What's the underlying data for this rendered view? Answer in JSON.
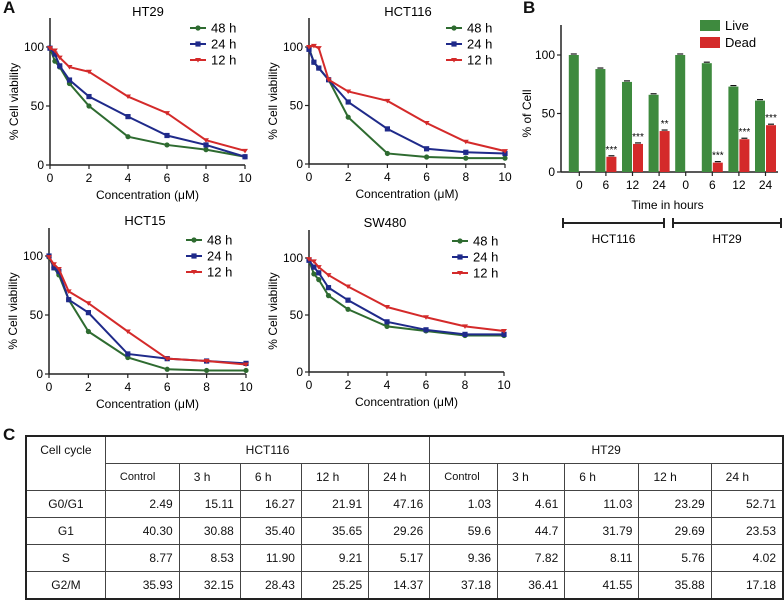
{
  "panels": {
    "a": "A",
    "b": "B",
    "c": "C"
  },
  "chart_data": [
    {
      "type": "line",
      "title": "HT29",
      "xlabel": "Concentration (μM)",
      "ylabel": "% Cell viability",
      "xlim": [
        0,
        10
      ],
      "ylim": [
        0,
        120
      ],
      "xticks": [
        0,
        2,
        4,
        6,
        8,
        10
      ],
      "yticks": [
        0,
        50,
        100
      ],
      "legend": "top-right",
      "x": [
        0,
        0.25,
        0.5,
        1,
        2,
        4,
        6,
        8,
        10
      ],
      "series": [
        {
          "name": "48 h",
          "color": "#2e6b30",
          "marker": "circle",
          "values": [
            99,
            88,
            83,
            69,
            50,
            24,
            17,
            13,
            7
          ]
        },
        {
          "name": "24 h",
          "color": "#1f2a8a",
          "marker": "square",
          "values": [
            99,
            94,
            84,
            72,
            58,
            41,
            25,
            17,
            7
          ]
        },
        {
          "name": "12 h",
          "color": "#d42a2a",
          "marker": "triangle",
          "values": [
            99,
            97,
            91,
            83,
            79,
            58,
            44,
            21,
            12
          ]
        }
      ]
    },
    {
      "type": "line",
      "title": "HCT116",
      "xlabel": "Concentration (μM)",
      "ylabel": "% Cell viability",
      "xlim": [
        0,
        10
      ],
      "ylim": [
        0,
        120
      ],
      "xticks": [
        0,
        2,
        4,
        6,
        8,
        10
      ],
      "yticks": [
        0,
        50,
        100
      ],
      "legend": "top-right",
      "x": [
        0,
        0.25,
        0.5,
        1,
        2,
        4,
        6,
        8,
        10
      ],
      "series": [
        {
          "name": "48 h",
          "color": "#2e6b30",
          "marker": "circle",
          "values": [
            99,
            87,
            82,
            72,
            40,
            9,
            6,
            5,
            5
          ]
        },
        {
          "name": "24 h",
          "color": "#1f2a8a",
          "marker": "square",
          "values": [
            98,
            87,
            82,
            72,
            53,
            30,
            13,
            10,
            9
          ]
        },
        {
          "name": "12 h",
          "color": "#d42a2a",
          "marker": "triangle",
          "values": [
            100,
            101,
            99,
            72,
            62,
            54,
            35,
            19,
            11
          ]
        }
      ]
    },
    {
      "type": "line",
      "title": "HCT15",
      "xlabel": "Concentration (μM)",
      "ylabel": "% Cell viability",
      "xlim": [
        0,
        10
      ],
      "ylim": [
        0,
        120
      ],
      "xticks": [
        0,
        2,
        4,
        6,
        8,
        10
      ],
      "yticks": [
        0,
        50,
        100
      ],
      "legend": "top-right",
      "x": [
        0,
        0.25,
        0.5,
        1,
        2,
        4,
        6,
        8,
        10
      ],
      "series": [
        {
          "name": "48 h",
          "color": "#2e6b30",
          "marker": "circle",
          "values": [
            99,
            90,
            84,
            63,
            36,
            14,
            4,
            3,
            3
          ]
        },
        {
          "name": "24 h",
          "color": "#1f2a8a",
          "marker": "square",
          "values": [
            100,
            90,
            87,
            63,
            52,
            17,
            13,
            11,
            9
          ]
        },
        {
          "name": "12 h",
          "color": "#d42a2a",
          "marker": "triangle",
          "values": [
            99,
            93,
            89,
            70,
            60,
            36,
            13,
            11,
            8
          ]
        }
      ]
    },
    {
      "type": "line",
      "title": "SW480",
      "xlabel": "Concentration (μM)",
      "ylabel": "% Cell viability",
      "xlim": [
        0,
        10
      ],
      "ylim": [
        0,
        120
      ],
      "xticks": [
        0,
        2,
        4,
        6,
        8,
        10
      ],
      "yticks": [
        0,
        50,
        100
      ],
      "legend": "top-right",
      "x": [
        0,
        0.25,
        0.5,
        1,
        2,
        4,
        6,
        8,
        10
      ],
      "series": [
        {
          "name": "48 h",
          "color": "#2e6b30",
          "marker": "circle",
          "values": [
            98,
            86,
            81,
            67,
            55,
            40,
            36,
            32,
            32
          ]
        },
        {
          "name": "24 h",
          "color": "#1f2a8a",
          "marker": "square",
          "values": [
            98,
            92,
            87,
            74,
            63,
            44,
            37,
            33,
            33
          ]
        },
        {
          "name": "12 h",
          "color": "#d42a2a",
          "marker": "triangle",
          "values": [
            99,
            97,
            92,
            85,
            75,
            57,
            48,
            40,
            36
          ]
        }
      ]
    },
    {
      "type": "bar",
      "xlabel": "Time in hours",
      "ylabel": "% of Cell",
      "ylim": [
        0,
        120
      ],
      "yticks": [
        0,
        50,
        100
      ],
      "legend": "top-right",
      "categories": [
        "0",
        "6",
        "12",
        "24",
        "0",
        "6",
        "12",
        "24"
      ],
      "groups": [
        {
          "label": "HCT116",
          "start": 0,
          "end": 3
        },
        {
          "label": "HT29",
          "start": 4,
          "end": 7
        }
      ],
      "series": [
        {
          "name": "Live",
          "color": "#3e8a3e",
          "values": [
            100,
            88,
            77,
            66,
            100,
            93,
            73,
            61
          ]
        },
        {
          "name": "Dead",
          "color": "#d42a2a",
          "values": [
            0,
            13,
            24,
            35,
            0,
            8,
            28,
            40
          ]
        }
      ],
      "annotations": [
        "",
        "***",
        "***",
        "**",
        "",
        "***",
        "***",
        "***"
      ]
    }
  ],
  "table": {
    "header_label": "Cell cycle",
    "groups": [
      "HCT116",
      "HT29"
    ],
    "columns": [
      "Control",
      "3 h",
      "6 h",
      "12 h",
      "24 h",
      "Control",
      "3 h",
      "6 h",
      "12 h",
      "24 h"
    ],
    "rows": [
      {
        "label": "G0/G1",
        "values": [
          "2.49",
          "15.11",
          "16.27",
          "21.91",
          "47.16",
          "1.03",
          "4.61",
          "11.03",
          "23.29",
          "52.71"
        ]
      },
      {
        "label": "G1",
        "values": [
          "40.30",
          "30.88",
          "35.40",
          "35.65",
          "29.26",
          "59.6",
          "44.7",
          "31.79",
          "29.69",
          "23.53"
        ]
      },
      {
        "label": "S",
        "values": [
          "8.77",
          "8.53",
          "11.90",
          "9.21",
          "5.17",
          "9.36",
          "7.82",
          "8.11",
          "5.76",
          "4.02"
        ]
      },
      {
        "label": "G2/M",
        "values": [
          "35.93",
          "32.15",
          "28.43",
          "25.25",
          "14.37",
          "37.18",
          "36.41",
          "41.55",
          "35.88",
          "17.18"
        ]
      }
    ]
  }
}
